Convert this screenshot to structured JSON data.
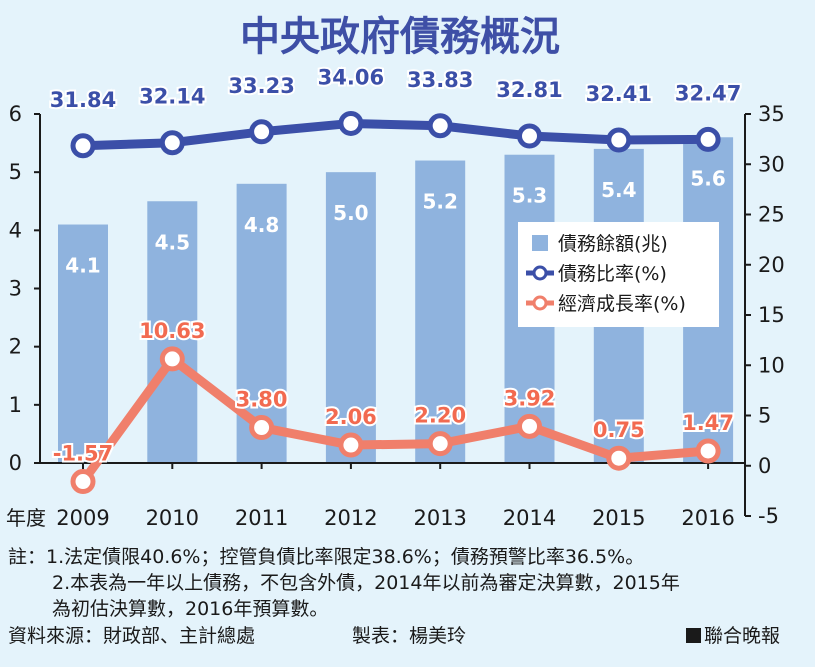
{
  "chart_data": {
    "type": "bar",
    "title": "中央政府債務概況",
    "x_label": "年度",
    "categories": [
      "2009",
      "2010",
      "2011",
      "2012",
      "2013",
      "2014",
      "2015",
      "2016"
    ],
    "left_axis": {
      "ylim": [
        0,
        6
      ],
      "ticks": [
        "0",
        "1",
        "2",
        "3",
        "4",
        "5",
        "6"
      ]
    },
    "right_axis": {
      "ylim": [
        -5,
        35
      ],
      "ticks": [
        "-5",
        "0",
        "5",
        "10",
        "15",
        "20",
        "25",
        "30",
        "35"
      ]
    },
    "series": [
      {
        "name": "債務餘額(兆)",
        "type": "bar",
        "axis": "left",
        "color": "#8fb3de",
        "values": [
          4.1,
          4.5,
          4.8,
          5.0,
          5.2,
          5.3,
          5.4,
          5.6
        ],
        "labels": [
          "4.1",
          "4.5",
          "4.8",
          "5.0",
          "5.2",
          "5.3",
          "5.4",
          "5.6"
        ]
      },
      {
        "name": "債務比率(%)",
        "type": "line",
        "axis": "right",
        "color": "#3b4fa8",
        "values": [
          31.84,
          32.14,
          33.23,
          34.06,
          33.83,
          32.81,
          32.41,
          32.47
        ],
        "labels": [
          "31.84",
          "32.14",
          "33.23",
          "34.06",
          "33.83",
          "32.81",
          "32.41",
          "32.47"
        ]
      },
      {
        "name": "經濟成長率(%)",
        "type": "line",
        "axis": "right",
        "color": "#f07f6b",
        "values": [
          -1.57,
          10.63,
          3.8,
          2.06,
          2.2,
          3.92,
          0.75,
          1.47
        ],
        "labels": [
          "-1.57",
          "10.63",
          "3.80",
          "2.06",
          "2.20",
          "3.92",
          "0.75",
          "1.47"
        ]
      }
    ],
    "legend_position": "middle-right"
  },
  "notes": {
    "line1": "註：1.法定債限40.6%；控管負債比率限定38.6%；債務預警比率36.5%。",
    "line2": "2.本表為一年以上債務，不包含外債，2014年以前為審定決算數，2015年",
    "line3": "為初估決算數，2016年預算數。"
  },
  "footer": {
    "source": "資料來源：財政部、主計總處",
    "maker": "製表：楊美玲",
    "publisher": "聯合晚報"
  }
}
